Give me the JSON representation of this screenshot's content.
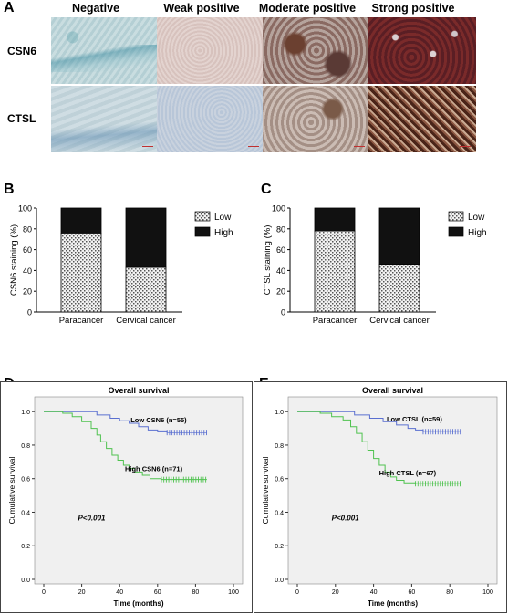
{
  "panel_a": {
    "letter": "A",
    "columns": [
      "Negative",
      "Weak positive",
      "Moderate positive",
      "Strong positive"
    ],
    "rows": [
      "CSN6",
      "CTSL"
    ]
  },
  "panel_b": {
    "letter": "B"
  },
  "panel_c": {
    "letter": "C"
  },
  "panel_d": {
    "letter": "D"
  },
  "panel_e": {
    "letter": "E"
  },
  "chart_data": [
    {
      "panel": "B",
      "type": "bar",
      "stacked": true,
      "categories": [
        "Paracancer",
        "Cervical cancer"
      ],
      "series": [
        {
          "name": "Low",
          "values": [
            76,
            43
          ],
          "color": "#e8e8e8",
          "pattern": "dotted"
        },
        {
          "name": "High",
          "values": [
            24,
            57
          ],
          "color": "#111111"
        }
      ],
      "ylabel": "CSN6 staining (%)",
      "ylim": [
        0,
        100
      ],
      "yticks": [
        "0",
        "20",
        "40",
        "60",
        "80",
        "100"
      ],
      "legend_position": "top-right"
    },
    {
      "panel": "C",
      "type": "bar",
      "stacked": true,
      "categories": [
        "Paracancer",
        "Cervical cancer"
      ],
      "series": [
        {
          "name": "Low",
          "values": [
            78,
            46
          ],
          "color": "#e8e8e8",
          "pattern": "dotted"
        },
        {
          "name": "High",
          "values": [
            22,
            54
          ],
          "color": "#111111"
        }
      ],
      "ylabel": "CTSL staining (%)",
      "ylim": [
        0,
        100
      ],
      "yticks": [
        "0",
        "20",
        "40",
        "60",
        "80",
        "100"
      ],
      "legend_position": "top-right"
    },
    {
      "panel": "D",
      "type": "line",
      "step": true,
      "title": "Overall survival",
      "xlabel": "Time (months)",
      "ylabel": "Cumulative survival",
      "xlim": [
        0,
        100
      ],
      "ylim": [
        0,
        1.05
      ],
      "xticks": [
        "0",
        "20",
        "40",
        "60",
        "80",
        "100"
      ],
      "yticks": [
        "0.0",
        "0.2",
        "0.4",
        "0.6",
        "0.8",
        "1.0"
      ],
      "annotation": "P<0.001",
      "background": "#f0f0f0",
      "series": [
        {
          "name": "Low CSN6 (n=55)",
          "color": "#5a6fd0",
          "x": [
            0,
            20,
            28,
            35,
            40,
            45,
            50,
            55,
            60,
            65,
            86
          ],
          "y": [
            1.0,
            1.0,
            0.98,
            0.96,
            0.945,
            0.93,
            0.91,
            0.89,
            0.885,
            0.875,
            0.875
          ]
        },
        {
          "name": "High CSN6 (n=71)",
          "color": "#4fc24f",
          "x": [
            0,
            10,
            15,
            20,
            25,
            28,
            30,
            33,
            36,
            39,
            42,
            45,
            48,
            52,
            56,
            62,
            86
          ],
          "y": [
            1.0,
            0.99,
            0.97,
            0.94,
            0.9,
            0.86,
            0.82,
            0.78,
            0.74,
            0.71,
            0.68,
            0.66,
            0.64,
            0.62,
            0.6,
            0.595,
            0.595
          ]
        }
      ]
    },
    {
      "panel": "E",
      "type": "line",
      "step": true,
      "title": "Overall survival",
      "xlabel": "Time (months)",
      "ylabel": "Cumulative survival",
      "xlim": [
        0,
        100
      ],
      "ylim": [
        0,
        1.05
      ],
      "xticks": [
        "0",
        "20",
        "40",
        "60",
        "80",
        "100"
      ],
      "yticks": [
        "0.0",
        "0.2",
        "0.4",
        "0.6",
        "0.8",
        "1.0"
      ],
      "annotation": "P<0.001",
      "background": "#f0f0f0",
      "series": [
        {
          "name": "Low CTSL (n=59)",
          "color": "#5a6fd0",
          "x": [
            0,
            25,
            30,
            38,
            45,
            52,
            58,
            62,
            66,
            86
          ],
          "y": [
            1.0,
            1.0,
            0.98,
            0.96,
            0.94,
            0.92,
            0.9,
            0.89,
            0.88,
            0.88
          ]
        },
        {
          "name": "High CTSL (n=67)",
          "color": "#4fc24f",
          "x": [
            0,
            12,
            18,
            24,
            28,
            31,
            34,
            37,
            40,
            43,
            46,
            49,
            52,
            56,
            62,
            86
          ],
          "y": [
            1.0,
            0.99,
            0.97,
            0.95,
            0.91,
            0.87,
            0.82,
            0.77,
            0.72,
            0.68,
            0.64,
            0.61,
            0.59,
            0.575,
            0.57,
            0.57
          ]
        }
      ]
    }
  ]
}
